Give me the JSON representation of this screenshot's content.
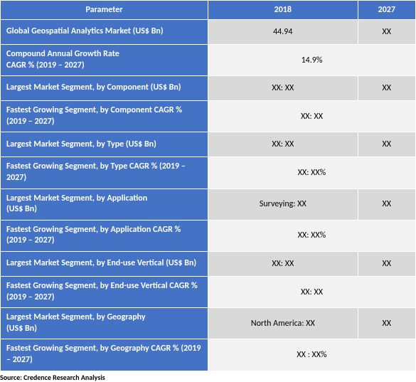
{
  "headers": {
    "parameter": "Parameter",
    "col2018": "2018",
    "col2027": "2027"
  },
  "rows": [
    {
      "param": "Global Geospatial Analytics Market (US$ Bn)",
      "v2018": "44.94",
      "v2027": "XX",
      "merged": false,
      "alt": false
    },
    {
      "param": "Compound Annual Growth Rate\nCAGR % (2019 – 2027)",
      "merged_val": "14.9%",
      "merged": true,
      "alt": true
    },
    {
      "param": "Largest Market Segment, by Component (US$ Bn)",
      "v2018": "XX: XX",
      "v2027": "XX",
      "merged": false,
      "alt": false
    },
    {
      "param": "Fastest Growing Segment, by Component CAGR % (2019 – 2027)",
      "merged_val": "XX: XX",
      "merged": true,
      "alt": true
    },
    {
      "param": "Largest Market Segment, by Type (US$ Bn)",
      "v2018": "XX: XX",
      "v2027": "XX",
      "merged": false,
      "alt": false
    },
    {
      "param": "Fastest Growing Segment, by Type CAGR % (2019 – 2027)",
      "merged_val": "XX: XX%",
      "merged": true,
      "alt": true
    },
    {
      "param": "Largest Market Segment, by Application\n(US$ Bn)",
      "v2018": "Surveying: XX",
      "v2027": "XX",
      "merged": false,
      "alt": false
    },
    {
      "param": "Fastest Growing Segment, by Application CAGR % (2019 – 2027)",
      "merged_val": "XX: XX%",
      "merged": true,
      "alt": true
    },
    {
      "param": "Largest Market Segment, by End-use Vertical (US$ Bn)",
      "v2018": "XX: XX",
      "v2027": "XX",
      "merged": false,
      "alt": false
    },
    {
      "param": "Fastest Growing Segment, by End-use Vertical CAGR % (2019 – 2027)",
      "merged_val": "XX: XX",
      "merged": true,
      "alt": true
    },
    {
      "param": "Largest Market Segment, by Geography\n(US$ Bn)",
      "v2018": "North America: XX",
      "v2027": "XX",
      "merged": false,
      "alt": false
    },
    {
      "param": "Fastest Growing Segment, by Geography CAGR % (2019 – 2027)",
      "merged_val": "XX : XX%",
      "merged": true,
      "alt": true
    }
  ],
  "source": "Source: Credence Research Analysis",
  "colors": {
    "header_bg": "#4472c4",
    "header_text": "#ffffff",
    "data_bg": "#d9d9d9",
    "data_alt_bg": "#f2f2f2",
    "border": "#ffffff"
  }
}
